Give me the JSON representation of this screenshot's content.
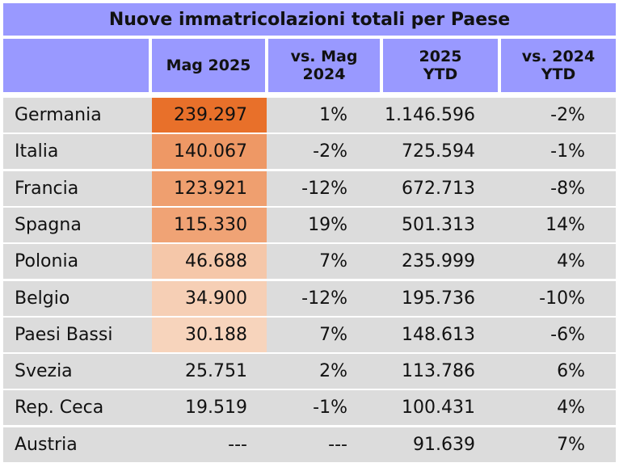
{
  "chart_data": {
    "type": "table",
    "title": "Nuove immatricolazioni totali per Paese",
    "columns": [
      "",
      "Mag 2025",
      "vs. Mag\n2024",
      "2025\nYTD",
      "vs. 2024\nYTD"
    ],
    "rows": [
      {
        "country": "Germania",
        "may": "239.297",
        "may_value": 239297,
        "vs_may": "1%",
        "ytd": "1.146.596",
        "vs_ytd": "-2%"
      },
      {
        "country": "Italia",
        "may": "140.067",
        "may_value": 140067,
        "vs_may": "-2%",
        "ytd": "725.594",
        "vs_ytd": "-1%"
      },
      {
        "country": "Francia",
        "may": "123.921",
        "may_value": 123921,
        "vs_may": "-12%",
        "ytd": "672.713",
        "vs_ytd": "-8%"
      },
      {
        "country": "Spagna",
        "may": "115.330",
        "may_value": 115330,
        "vs_may": "19%",
        "ytd": "501.313",
        "vs_ytd": "14%"
      },
      {
        "country": "Polonia",
        "may": "46.688",
        "may_value": 46688,
        "vs_may": "7%",
        "ytd": "235.999",
        "vs_ytd": "4%"
      },
      {
        "country": "Belgio",
        "may": "34.900",
        "may_value": 34900,
        "vs_may": "-12%",
        "ytd": "195.736",
        "vs_ytd": "-10%"
      },
      {
        "country": "Paesi Bassi",
        "may": "30.188",
        "may_value": 30188,
        "vs_may": "7%",
        "ytd": "148.613",
        "vs_ytd": "-6%"
      },
      {
        "country": "Svezia",
        "may": "25.751",
        "may_value": 25751,
        "vs_may": "2%",
        "ytd": "113.786",
        "vs_ytd": "6%"
      },
      {
        "country": "Rep. Ceca",
        "may": "19.519",
        "may_value": 19519,
        "vs_may": "-1%",
        "ytd": "100.431",
        "vs_ytd": "4%"
      },
      {
        "country": "Austria",
        "may": "---",
        "may_value": null,
        "vs_may": "---",
        "ytd": "91.639",
        "vs_ytd": "7%"
      }
    ],
    "highlight_rows": 7,
    "heat_color": "#e8702a",
    "header_color": "#9999ff",
    "row_color": "#dcdcdc"
  }
}
